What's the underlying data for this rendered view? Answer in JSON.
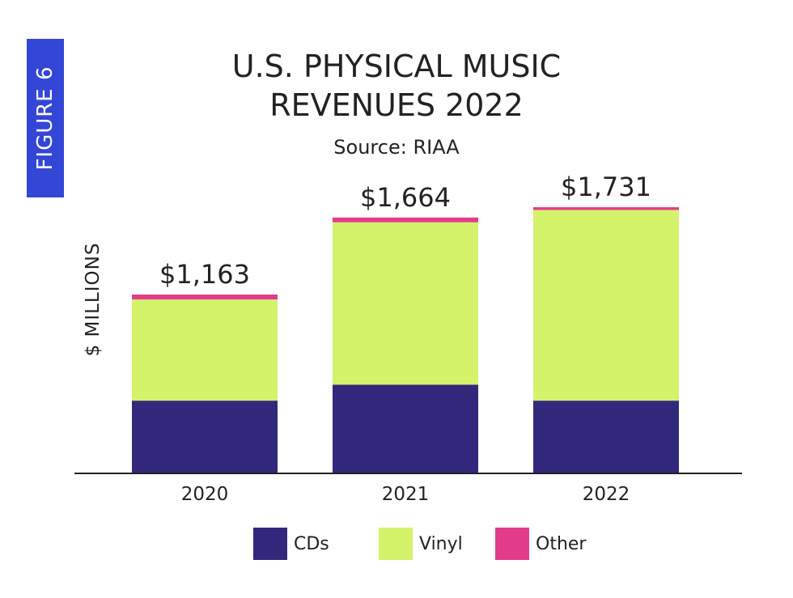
{
  "figure_label": "FIGURE 6",
  "chart_data": {
    "type": "bar",
    "stacked": true,
    "title_lines": [
      "U.S. PHYSICAL MUSIC",
      "REVENUES 2022"
    ],
    "subtitle": "Source: RIAA",
    "ylabel": "$ MILLIONS",
    "xlabel": "",
    "categories": [
      "2020",
      "2021",
      "2022"
    ],
    "totals_labels": [
      "$1,163",
      "$1,664",
      "$1,731"
    ],
    "totals": [
      1163,
      1664,
      1731
    ],
    "series": [
      {
        "name": "CDs",
        "color": "#32297c",
        "values": [
          473,
          577,
          473
        ]
      },
      {
        "name": "Vinyl",
        "color": "#d4f26a",
        "values": [
          658,
          1056,
          1240
        ]
      },
      {
        "name": "Other",
        "color": "#e23c8c",
        "values": [
          32,
          31,
          18
        ]
      }
    ],
    "ylim": [
      0,
      1800
    ],
    "grid": false,
    "legend_position": "bottom"
  }
}
